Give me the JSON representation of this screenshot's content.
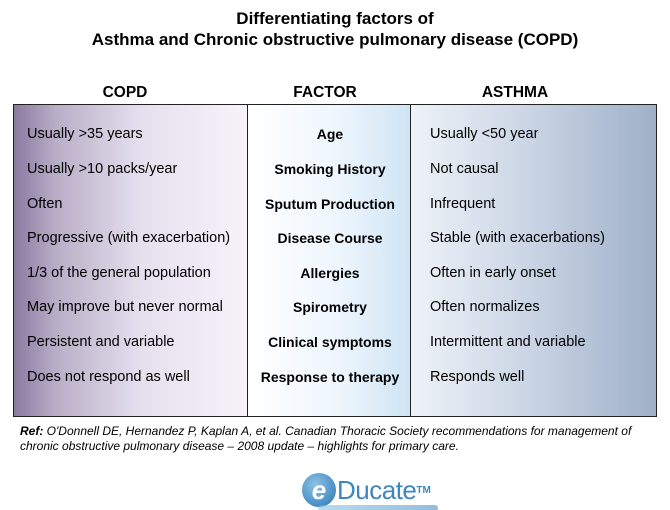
{
  "title": {
    "line1": "Differentiating factors of",
    "line2": "Asthma and Chronic obstructive pulmonary disease (COPD)"
  },
  "headers": {
    "copd": "COPD",
    "factor": "FACTOR",
    "asthma": "ASTHMA"
  },
  "rows": [
    {
      "copd": "Usually >35 years",
      "factor": "Age",
      "asthma": "Usually  <50 year"
    },
    {
      "copd": "Usually >10 packs/year",
      "factor": "Smoking History",
      "asthma": "Not causal"
    },
    {
      "copd": "Often",
      "factor": "Sputum Production",
      "asthma": "Infrequent"
    },
    {
      "copd": "Progressive (with exacerbation)",
      "factor": "Disease Course",
      "asthma": "Stable (with exacerbations)"
    },
    {
      "copd": "1/3 of the general population",
      "factor": "Allergies",
      "asthma": "Often in early onset"
    },
    {
      "copd": "May improve but never normal",
      "factor": "Spirometry",
      "asthma": "Often normalizes"
    },
    {
      "copd": "Persistent and variable",
      "factor": "Clinical symptoms",
      "asthma": "Intermittent and variable"
    },
    {
      "copd": "Does not respond as well",
      "factor": "Response to therapy",
      "asthma": "Responds well"
    }
  ],
  "reference": {
    "label": "Ref:",
    "text": " O'Donnell DE, Hernandez  P, Kaplan A,  et al. Canadian  Thoracic Society recommendations  for management  of chronic obstructive pulmonary  disease – 2008 update – highlights for primary care."
  },
  "logo": {
    "letter": "e",
    "text": "Ducate",
    "tm": "TM"
  },
  "colors": {
    "copd_panel": "#8a7aa0",
    "asthma_panel": "#9fb0c8",
    "logo_blue": "#3f86bf"
  }
}
